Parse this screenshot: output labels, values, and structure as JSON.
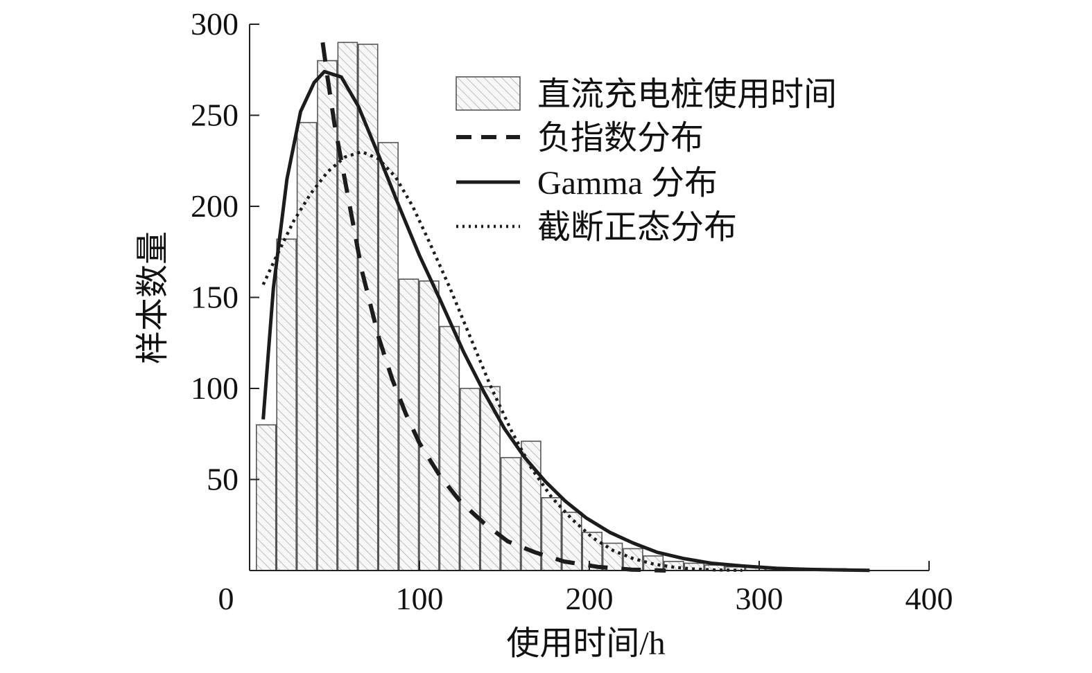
{
  "chart_data": {
    "type": "bar",
    "xlabel": "使用时间/h",
    "ylabel": "样本数量",
    "xlim": [
      0,
      400
    ],
    "ylim": [
      0,
      300
    ],
    "x_ticks": [
      0,
      100,
      200,
      300,
      400
    ],
    "y_ticks": [
      50,
      100,
      150,
      200,
      250,
      300
    ],
    "grid": false,
    "legend_position": "top-right",
    "bin_width": 11.4,
    "bins": [
      {
        "start": 4,
        "value": 80
      },
      {
        "start": 16,
        "value": 182
      },
      {
        "start": 28,
        "value": 246
      },
      {
        "start": 40,
        "value": 280
      },
      {
        "start": 52,
        "value": 290
      },
      {
        "start": 64,
        "value": 289
      },
      {
        "start": 76,
        "value": 235
      },
      {
        "start": 88,
        "value": 160
      },
      {
        "start": 100,
        "value": 159
      },
      {
        "start": 112,
        "value": 134
      },
      {
        "start": 124,
        "value": 100
      },
      {
        "start": 136,
        "value": 101
      },
      {
        "start": 148,
        "value": 62
      },
      {
        "start": 160,
        "value": 71
      },
      {
        "start": 172,
        "value": 40
      },
      {
        "start": 184,
        "value": 32
      },
      {
        "start": 196,
        "value": 21
      },
      {
        "start": 208,
        "value": 15
      },
      {
        "start": 220,
        "value": 12
      },
      {
        "start": 232,
        "value": 8
      },
      {
        "start": 244,
        "value": 5
      },
      {
        "start": 256,
        "value": 4
      },
      {
        "start": 268,
        "value": 3
      },
      {
        "start": 280,
        "value": 2
      },
      {
        "start": 292,
        "value": 2
      },
      {
        "start": 304,
        "value": 1
      },
      {
        "start": 316,
        "value": 1
      },
      {
        "start": 328,
        "value": 1
      },
      {
        "start": 340,
        "value": 1
      }
    ],
    "series": [
      {
        "name": "负指数分布",
        "style": "dashed",
        "points": [
          [
            43,
            290
          ],
          [
            46,
            270
          ],
          [
            50,
            245
          ],
          [
            58,
            205
          ],
          [
            66,
            165
          ],
          [
            76,
            128
          ],
          [
            84,
            105
          ],
          [
            92,
            86
          ],
          [
            100,
            70
          ],
          [
            112,
            52
          ],
          [
            124,
            38
          ],
          [
            138,
            26
          ],
          [
            152,
            16
          ],
          [
            168,
            10
          ],
          [
            185,
            5
          ],
          [
            205,
            2
          ],
          [
            225,
            0.5
          ],
          [
            245,
            0
          ]
        ]
      },
      {
        "name": "Gamma 分布",
        "style": "solid",
        "points": [
          [
            8,
            83
          ],
          [
            14,
            155
          ],
          [
            22,
            215
          ],
          [
            30,
            252
          ],
          [
            38,
            268
          ],
          [
            44,
            274
          ],
          [
            54,
            271
          ],
          [
            64,
            255
          ],
          [
            76,
            228
          ],
          [
            88,
            200
          ],
          [
            100,
            173
          ],
          [
            112,
            149
          ],
          [
            126,
            120
          ],
          [
            138,
            98
          ],
          [
            150,
            78
          ],
          [
            162,
            62
          ],
          [
            174,
            49
          ],
          [
            186,
            38
          ],
          [
            198,
            29
          ],
          [
            212,
            21
          ],
          [
            226,
            15
          ],
          [
            240,
            10
          ],
          [
            256,
            6.5
          ],
          [
            272,
            4
          ],
          [
            290,
            2.5
          ],
          [
            310,
            1.2
          ],
          [
            330,
            0.6
          ],
          [
            350,
            0.3
          ],
          [
            365,
            0.1
          ]
        ]
      },
      {
        "name": "截断正态分布",
        "style": "dotted",
        "points": [
          [
            8,
            157
          ],
          [
            16,
            173
          ],
          [
            26,
            192
          ],
          [
            36,
            207
          ],
          [
            46,
            219
          ],
          [
            56,
            227
          ],
          [
            66,
            230
          ],
          [
            76,
            226
          ],
          [
            86,
            216
          ],
          [
            96,
            200
          ],
          [
            106,
            180
          ],
          [
            118,
            155
          ],
          [
            130,
            128
          ],
          [
            142,
            101
          ],
          [
            154,
            77
          ],
          [
            166,
            56
          ],
          [
            178,
            40
          ],
          [
            190,
            28
          ],
          [
            202,
            18
          ],
          [
            214,
            11
          ],
          [
            226,
            6.5
          ],
          [
            238,
            3.5
          ],
          [
            250,
            1.8
          ],
          [
            262,
            0.8
          ],
          [
            274,
            0.3
          ],
          [
            290,
            0.1
          ]
        ]
      }
    ],
    "legend": [
      {
        "label": "直流充电桩使用时间",
        "symbol": "hatched-box"
      },
      {
        "label": "负指数分布",
        "symbol": "dashed-line"
      },
      {
        "label": "Gamma 分布",
        "symbol": "solid-line"
      },
      {
        "label": "截断正态分布",
        "symbol": "dotted-line"
      }
    ],
    "colors": {
      "bar_fill": "#f7f7f7",
      "bar_stroke": "#555555",
      "hatch": "#9a9a9a",
      "curve": "#1c1c1c",
      "axis": "#222222"
    }
  }
}
